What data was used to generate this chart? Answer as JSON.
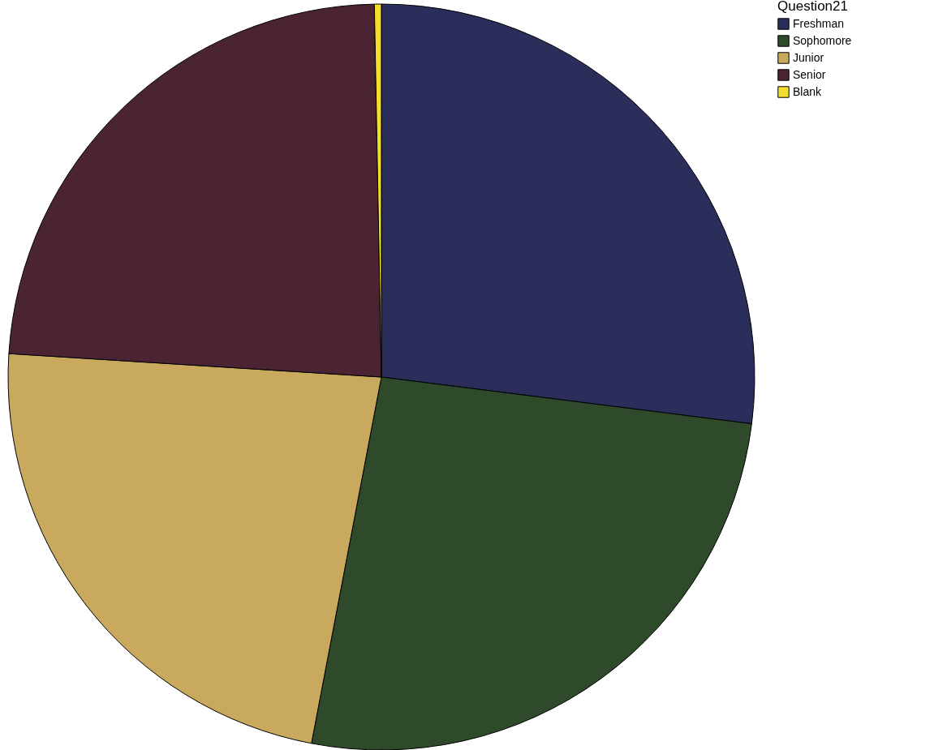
{
  "chart_data": {
    "type": "pie",
    "legend_title": "Question21",
    "categories": [
      "Freshman",
      "Sophomore",
      "Junior",
      "Senior",
      "Blank"
    ],
    "values": [
      27.0,
      26.0,
      23.0,
      23.7,
      0.3
    ],
    "colors": [
      "#2b2e5a",
      "#2f4a2a",
      "#c8a95e",
      "#4a2433",
      "#f2de2e"
    ],
    "legend": "top right"
  }
}
